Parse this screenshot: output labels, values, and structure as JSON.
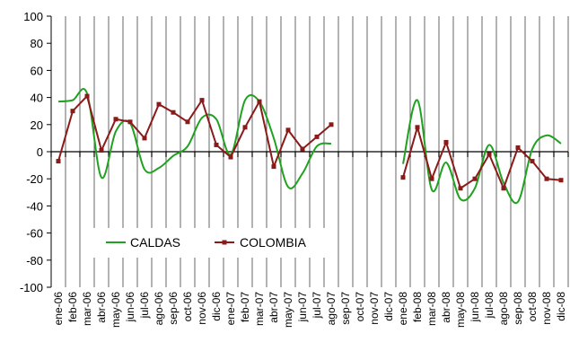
{
  "chart_data": {
    "type": "line",
    "x": [
      "ene-06",
      "feb-06",
      "mar-06",
      "abr-06",
      "may-06",
      "jun-06",
      "jul-06",
      "ago-06",
      "sep-06",
      "oct-06",
      "nov-06",
      "dic-06",
      "ene-07",
      "feb-07",
      "mar-07",
      "abr-07",
      "may-07",
      "jun-07",
      "jul-07",
      "ago-07",
      "sep-07",
      "oct-07",
      "nov-07",
      "dic-07",
      "ene-08",
      "feb-08",
      "mar-08",
      "abr-08",
      "may-08",
      "jun-08",
      "jul-08",
      "ago-08",
      "sep-08",
      "oct-08",
      "nov-08",
      "dic-08"
    ],
    "ylim": [
      -100,
      100
    ],
    "yticks": [
      "100",
      "80",
      "60",
      "40",
      "20",
      "0",
      "-20",
      "-40",
      "-60",
      "-80",
      "-100"
    ],
    "grid": "vertical",
    "legend_position": "lower-left",
    "series": [
      {
        "name": "CALDAS",
        "color": "#1fa21f",
        "marker": "none",
        "smooth": true,
        "values": [
          37,
          38,
          43,
          -19,
          15,
          21,
          -13,
          -12,
          -3,
          4,
          25,
          24,
          -2,
          38,
          37,
          10,
          -26,
          -16,
          4,
          6,
          null,
          null,
          null,
          null,
          -9,
          38,
          -28,
          -8,
          -35,
          -27,
          5,
          -23,
          -37,
          2,
          12,
          6
        ]
      },
      {
        "name": "COLOMBIA",
        "color": "#8b1a1a",
        "marker": "square",
        "smooth": false,
        "values": [
          -7,
          30,
          41,
          1,
          24,
          22,
          10,
          35,
          29,
          22,
          38,
          5,
          -4,
          18,
          37,
          -11,
          16,
          2,
          11,
          20,
          null,
          null,
          null,
          null,
          -19,
          18,
          -20,
          7,
          -27,
          -20,
          -2,
          -27,
          3,
          -7,
          -20,
          -21
        ]
      }
    ]
  }
}
